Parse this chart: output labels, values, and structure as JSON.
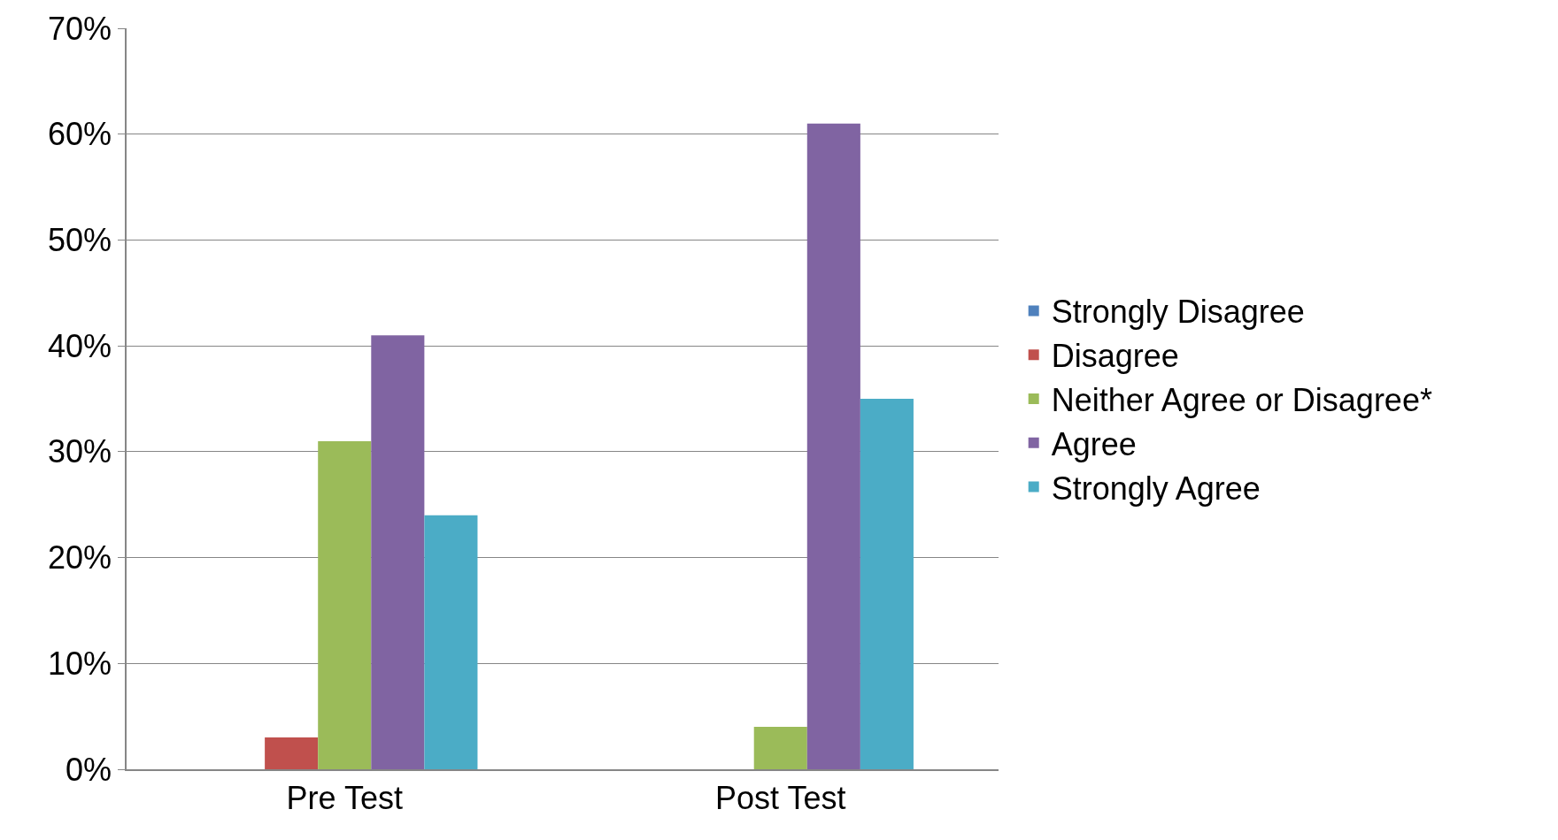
{
  "chart_data": {
    "type": "bar",
    "categories": [
      "Pre Test",
      "Post Test"
    ],
    "series": [
      {
        "name": "Strongly Disagree",
        "color": "#4f81bd",
        "values": [
          0,
          0
        ]
      },
      {
        "name": "Disagree",
        "color": "#c0504d",
        "values": [
          3,
          0
        ]
      },
      {
        "name": "Neither Agree or Disagree*",
        "color": "#9bbb59",
        "values": [
          31,
          4
        ]
      },
      {
        "name": "Agree",
        "color": "#8064a2",
        "values": [
          41,
          61
        ]
      },
      {
        "name": "Strongly Agree",
        "color": "#4bacc6",
        "values": [
          24,
          35
        ]
      }
    ],
    "ylim": [
      0,
      70
    ],
    "yticks": [
      {
        "value": 0,
        "label": "0%"
      },
      {
        "value": 10,
        "label": "10%"
      },
      {
        "value": 20,
        "label": "20%"
      },
      {
        "value": 30,
        "label": "30%"
      },
      {
        "value": 40,
        "label": "40%"
      },
      {
        "value": 50,
        "label": "50%"
      },
      {
        "value": 60,
        "label": "60%"
      },
      {
        "value": 70,
        "label": "70%"
      }
    ],
    "grid": "y",
    "legend": "right"
  }
}
